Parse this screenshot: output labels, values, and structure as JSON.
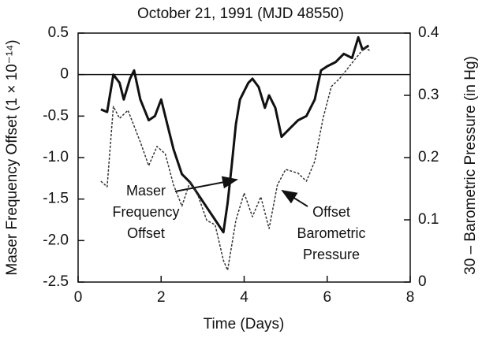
{
  "chart_data": {
    "type": "line",
    "title": "October 21, 1991 (MJD 48550)",
    "xlabel": "Time (Days)",
    "ylabel": "Maser Frequency Offset (1 × 10⁻¹⁴)",
    "y2label": "30 – Barometric Pressure (in Hg)",
    "annotations": [
      "Maser",
      "Frequency",
      "Offset",
      "Offset",
      "Barometric",
      "Pressure"
    ],
    "xlim": [
      0,
      8
    ],
    "xticks": [
      0,
      2,
      4,
      6,
      8
    ],
    "ylim": [
      -2.5,
      0.5
    ],
    "yticks": [
      {
        "value": -2.5,
        "label": "-2.5"
      },
      {
        "value": -2,
        "label": "-2.0"
      },
      -1.5,
      {
        "value": -1,
        "label": "-1.0"
      },
      -0.5,
      0,
      0.5
    ],
    "y2lim": [
      0,
      0.4
    ],
    "y2ticks": [
      0,
      0.1,
      0.2,
      0.3,
      0.4
    ],
    "hline": 0,
    "series": [
      {
        "name": "Maser Frequency Offset",
        "color": "#111111",
        "dash": false,
        "width": 3,
        "x": [
          0.55,
          0.7,
          0.85,
          1.0,
          1.1,
          1.25,
          1.35,
          1.5,
          1.7,
          1.85,
          2.0,
          2.15,
          2.3,
          2.5,
          2.7,
          2.9,
          3.1,
          3.3,
          3.5,
          3.6,
          3.7,
          3.8,
          3.9,
          4.0,
          4.1,
          4.2,
          4.35,
          4.5,
          4.6,
          4.75,
          4.9,
          5.1,
          5.3,
          5.5,
          5.7,
          5.85,
          6.0,
          6.2,
          6.4,
          6.6,
          6.75,
          6.85,
          7.0
        ],
        "values": [
          -0.42,
          -0.45,
          0.0,
          -0.1,
          -0.3,
          -0.05,
          0.05,
          -0.3,
          -0.55,
          -0.5,
          -0.3,
          -0.6,
          -0.9,
          -1.2,
          -1.3,
          -1.45,
          -1.6,
          -1.75,
          -1.9,
          -1.55,
          -1.1,
          -0.6,
          -0.3,
          -0.2,
          -0.1,
          -0.05,
          -0.15,
          -0.4,
          -0.25,
          -0.4,
          -0.75,
          -0.65,
          -0.55,
          -0.5,
          -0.3,
          0.05,
          0.1,
          0.15,
          0.25,
          0.2,
          0.45,
          0.3,
          0.35
        ]
      },
      {
        "name": "Offset Barometric Pressure",
        "color": "#333333",
        "dash": true,
        "width": 1.5,
        "axis": "y2",
        "x": [
          0.55,
          0.7,
          0.85,
          1.0,
          1.2,
          1.5,
          1.7,
          1.9,
          2.1,
          2.3,
          2.5,
          2.7,
          2.9,
          3.1,
          3.3,
          3.5,
          3.6,
          3.8,
          4.0,
          4.2,
          4.4,
          4.6,
          4.8,
          5.0,
          5.3,
          5.5,
          5.7,
          5.9,
          6.1,
          6.3,
          6.6,
          6.9,
          7.05
        ],
        "values": [
          0.162,
          0.153,
          0.282,
          0.263,
          0.276,
          0.225,
          0.187,
          0.218,
          0.206,
          0.156,
          0.122,
          0.162,
          0.137,
          0.099,
          0.092,
          0.035,
          0.019,
          0.099,
          0.143,
          0.105,
          0.137,
          0.086,
          0.156,
          0.181,
          0.175,
          0.162,
          0.194,
          0.263,
          0.314,
          0.327,
          0.352,
          0.377,
          0.371
        ]
      }
    ]
  }
}
